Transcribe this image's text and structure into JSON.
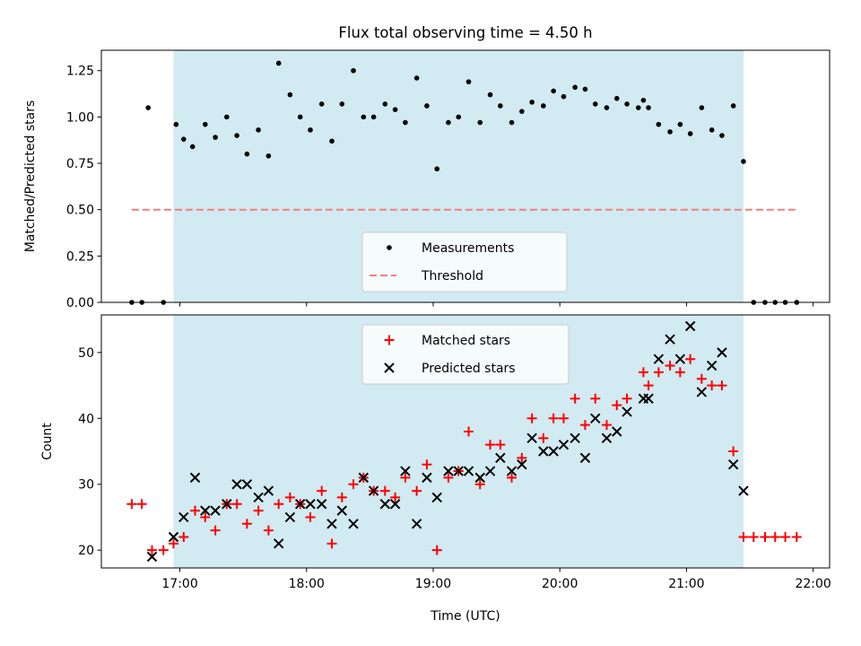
{
  "figure": {
    "title": "Flux total observing time = 4.50 h",
    "xlabel": "Time (UTC)",
    "x_ticks": [
      "17:00",
      "18:00",
      "19:00",
      "20:00",
      "21:00",
      "22:00"
    ],
    "x_tick_values_hours": [
      17,
      18,
      19,
      20,
      21,
      22
    ],
    "xlim_hours": [
      16.38,
      22.13
    ],
    "observing_window_hours": [
      16.95,
      21.45
    ],
    "shade_color": "#add8e6",
    "grid": false
  },
  "chart_data": [
    {
      "type": "scatter",
      "ylabel": "Matched/Predicted stars",
      "ylim": [
        0,
        1.36
      ],
      "y_ticks": [
        "0.00",
        "0.25",
        "0.50",
        "0.75",
        "1.00",
        "1.25"
      ],
      "legend_position": "lower center",
      "series": [
        {
          "name": "Measurements",
          "color": "#000000",
          "marker": "dot",
          "x": [
            16.62,
            16.7,
            16.75,
            16.87,
            16.97,
            17.03,
            17.1,
            17.2,
            17.28,
            17.37,
            17.45,
            17.53,
            17.62,
            17.7,
            17.78,
            17.87,
            17.95,
            18.03,
            18.12,
            18.2,
            18.28,
            18.37,
            18.45,
            18.53,
            18.62,
            18.7,
            18.78,
            18.87,
            18.95,
            19.03,
            19.12,
            19.2,
            19.28,
            19.37,
            19.45,
            19.53,
            19.62,
            19.7,
            19.78,
            19.87,
            19.95,
            20.03,
            20.12,
            20.2,
            20.28,
            20.37,
            20.45,
            20.53,
            20.62,
            20.66,
            20.7,
            20.78,
            20.87,
            20.95,
            21.03,
            21.12,
            21.2,
            21.28,
            21.37,
            21.45,
            21.53,
            21.62,
            21.7,
            21.78,
            21.87
          ],
          "y": [
            0.0,
            0.0,
            1.05,
            0.0,
            0.96,
            0.88,
            0.84,
            0.96,
            0.89,
            1.0,
            0.9,
            0.8,
            0.93,
            0.79,
            1.29,
            1.12,
            1.0,
            0.93,
            1.07,
            0.87,
            1.07,
            1.25,
            1.0,
            1.0,
            1.07,
            1.04,
            0.97,
            1.21,
            1.06,
            0.72,
            0.97,
            1.0,
            1.19,
            0.97,
            1.12,
            1.06,
            0.97,
            1.03,
            1.08,
            1.06,
            1.14,
            1.11,
            1.16,
            1.15,
            1.07,
            1.05,
            1.1,
            1.07,
            1.05,
            1.09,
            1.05,
            0.96,
            0.92,
            0.96,
            0.91,
            1.05,
            0.93,
            0.9,
            1.06,
            0.76,
            0.0,
            0.0,
            0.0,
            0.0,
            0.0
          ]
        },
        {
          "name": "Threshold",
          "color": "#f08080",
          "style": "dashed",
          "x": [
            16.62,
            21.87
          ],
          "y": [
            0.5,
            0.5
          ]
        }
      ]
    },
    {
      "type": "scatter",
      "ylabel": "Count",
      "ylim": [
        17.3,
        55.7
      ],
      "y_ticks": [
        "20",
        "30",
        "40",
        "50"
      ],
      "legend_position": "upper center",
      "series": [
        {
          "name": "Matched stars",
          "color": "#ff0000",
          "marker": "plus",
          "x": [
            16.62,
            16.7,
            16.78,
            16.87,
            16.95,
            17.03,
            17.12,
            17.2,
            17.28,
            17.37,
            17.45,
            17.53,
            17.62,
            17.7,
            17.78,
            17.87,
            17.95,
            18.03,
            18.12,
            18.2,
            18.28,
            18.37,
            18.45,
            18.53,
            18.62,
            18.7,
            18.78,
            18.87,
            18.95,
            19.03,
            19.12,
            19.2,
            19.28,
            19.37,
            19.45,
            19.53,
            19.62,
            19.7,
            19.78,
            19.87,
            19.95,
            20.03,
            20.12,
            20.2,
            20.28,
            20.37,
            20.45,
            20.53,
            20.66,
            20.7,
            20.78,
            20.87,
            20.95,
            21.03,
            21.12,
            21.2,
            21.28,
            21.37,
            21.45,
            21.53,
            21.62,
            21.7,
            21.78,
            21.87
          ],
          "y": [
            27,
            27,
            20,
            20,
            21,
            22,
            26,
            25,
            23,
            27,
            27,
            24,
            26,
            23,
            27,
            28,
            27,
            25,
            29,
            21,
            28,
            30,
            31,
            29,
            29,
            28,
            31,
            29,
            33,
            20,
            31,
            32,
            38,
            30,
            36,
            36,
            31,
            34,
            40,
            37,
            40,
            40,
            43,
            39,
            43,
            39,
            42,
            43,
            47,
            45,
            47,
            48,
            47,
            49,
            46,
            45,
            45,
            35,
            22,
            22,
            22,
            22,
            22,
            22
          ]
        },
        {
          "name": "Predicted stars",
          "color": "#000000",
          "marker": "x",
          "x": [
            16.78,
            16.95,
            17.03,
            17.12,
            17.2,
            17.28,
            17.37,
            17.45,
            17.53,
            17.62,
            17.7,
            17.78,
            17.87,
            17.95,
            18.03,
            18.12,
            18.2,
            18.28,
            18.37,
            18.45,
            18.53,
            18.62,
            18.7,
            18.78,
            18.87,
            18.95,
            19.03,
            19.12,
            19.2,
            19.28,
            19.37,
            19.45,
            19.53,
            19.62,
            19.7,
            19.78,
            19.87,
            19.95,
            20.03,
            20.12,
            20.2,
            20.28,
            20.37,
            20.45,
            20.53,
            20.66,
            20.7,
            20.78,
            20.87,
            20.95,
            21.03,
            21.12,
            21.2,
            21.28,
            21.37,
            21.45
          ],
          "y": [
            19,
            22,
            25,
            31,
            26,
            26,
            27,
            30,
            30,
            28,
            29,
            21,
            25,
            27,
            27,
            27,
            24,
            26,
            24,
            31,
            29,
            27,
            27,
            32,
            24,
            31,
            28,
            32,
            32,
            32,
            31,
            32,
            34,
            32,
            33,
            37,
            35,
            35,
            36,
            37,
            34,
            40,
            37,
            38,
            41,
            43,
            43,
            49,
            52,
            49,
            54,
            44,
            48,
            50,
            33,
            29
          ]
        }
      ]
    }
  ]
}
